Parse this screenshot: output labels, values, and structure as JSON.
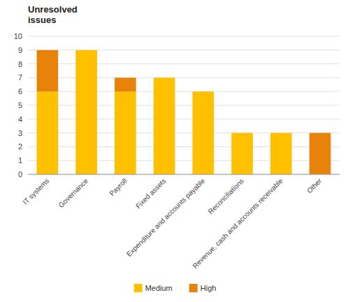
{
  "chart_data": {
    "type": "bar",
    "title": "Unresolved\nissues",
    "stacked": true,
    "categories": [
      "IT systems",
      "Governance",
      "Payroll",
      "Fixed assets",
      "Expenditure and accounts payable",
      "Reconciliations",
      "Revenue, cash and accounts receivable",
      "Other"
    ],
    "series": [
      {
        "name": "Medium",
        "color": "#FFC000",
        "values": [
          6,
          9,
          6,
          7,
          6,
          3,
          3,
          0
        ]
      },
      {
        "name": "High",
        "color": "#E8820A",
        "values": [
          3,
          0,
          1,
          0,
          0,
          0,
          0,
          3
        ]
      }
    ],
    "ylim": [
      0,
      10
    ],
    "yticks": [
      0,
      1,
      2,
      3,
      4,
      5,
      6,
      7,
      8,
      9,
      10
    ],
    "grid": true,
    "legend": "bottom"
  }
}
